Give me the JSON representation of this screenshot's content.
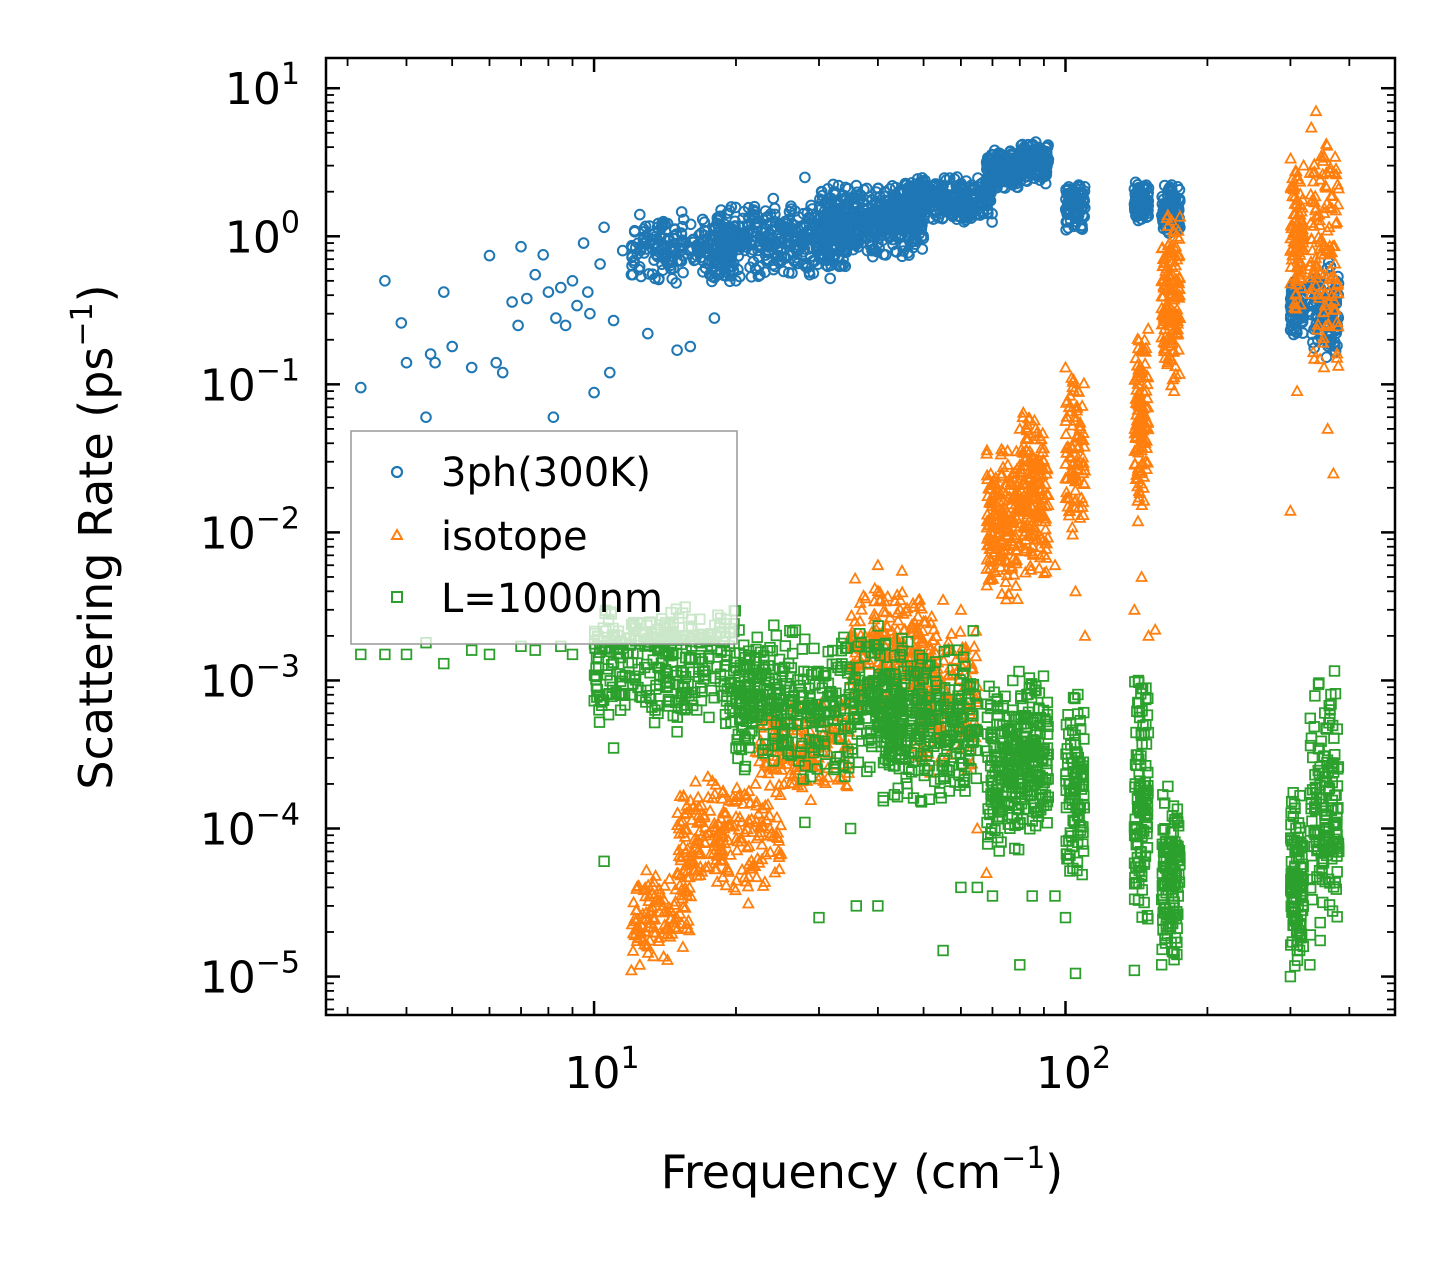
{
  "chart_data": {
    "type": "scatter",
    "xscale": "log",
    "yscale": "log",
    "xlim": [
      2.7,
      500
    ],
    "ylim": [
      5.5e-06,
      16
    ],
    "xlabel": "Frequency (cm⁻¹)",
    "ylabel": "Scattering Rate (ps⁻¹)",
    "xlabel_parts": {
      "base": "Frequency (cm",
      "sup": "−1",
      "tail": ")"
    },
    "ylabel_parts": {
      "base": "Scattering Rate (ps",
      "sup": "−1",
      "tail": ")"
    },
    "x_ticks": [
      {
        "value": 10,
        "base": "10",
        "exp": "1"
      },
      {
        "value": 100,
        "base": "10",
        "exp": "2"
      }
    ],
    "y_ticks": [
      {
        "value": 10,
        "base": "10",
        "exp": "1"
      },
      {
        "value": 1,
        "base": "10",
        "exp": "0"
      },
      {
        "value": 0.1,
        "base": "10",
        "exp": "−1"
      },
      {
        "value": 0.01,
        "base": "10",
        "exp": "−2"
      },
      {
        "value": 0.001,
        "base": "10",
        "exp": "−3"
      },
      {
        "value": 0.0001,
        "base": "10",
        "exp": "−4"
      },
      {
        "value": 1e-05,
        "base": "10",
        "exp": "−5"
      }
    ],
    "legend_position": "center-left",
    "series": [
      {
        "name": "3ph(300K)",
        "marker": "circle",
        "color": "#1f77b4",
        "points": [
          [
            3.2,
            0.095
          ],
          [
            3.6,
            0.5
          ],
          [
            3.9,
            0.26
          ],
          [
            4.0,
            0.14
          ],
          [
            4.4,
            0.06
          ],
          [
            4.5,
            0.16
          ],
          [
            4.8,
            0.42
          ],
          [
            4.6,
            0.14
          ],
          [
            5.0,
            0.18
          ],
          [
            5.5,
            0.13
          ],
          [
            6.0,
            0.74
          ],
          [
            6.2,
            0.14
          ],
          [
            6.4,
            0.12
          ],
          [
            6.7,
            0.36
          ],
          [
            6.9,
            0.25
          ],
          [
            7.0,
            0.85
          ],
          [
            7.2,
            0.38
          ],
          [
            7.5,
            0.55
          ],
          [
            7.8,
            0.75
          ],
          [
            8.0,
            0.42
          ],
          [
            8.2,
            0.06
          ],
          [
            8.3,
            0.28
          ],
          [
            8.5,
            0.45
          ],
          [
            8.7,
            0.25
          ],
          [
            9.0,
            0.5
          ],
          [
            9.2,
            0.34
          ],
          [
            9.5,
            0.9
          ],
          [
            9.7,
            0.42
          ],
          [
            9.8,
            0.3
          ],
          [
            10.0,
            0.088
          ],
          [
            10.3,
            0.65
          ],
          [
            10.5,
            1.15
          ],
          [
            10.8,
            0.12
          ],
          [
            11.0,
            0.27
          ],
          [
            11.5,
            0.8
          ],
          [
            12.0,
            0.55
          ],
          [
            12.5,
            1.4
          ],
          [
            13.0,
            0.22
          ],
          [
            13.5,
            0.9
          ],
          [
            14.0,
            1.2
          ],
          [
            15.0,
            0.17
          ],
          [
            15.5,
            1.3
          ],
          [
            16.0,
            0.18
          ],
          [
            17.0,
            1.3
          ],
          [
            18.0,
            0.28
          ],
          [
            19.0,
            1.1
          ],
          [
            20.0,
            0.5
          ],
          [
            22.0,
            0.6
          ],
          [
            24.0,
            1.8
          ],
          [
            26.0,
            0.9
          ],
          [
            28.0,
            2.5
          ],
          [
            30.0,
            1.5
          ],
          [
            33.0,
            2.2
          ],
          [
            36.0,
            2.2
          ],
          [
            38.0,
            0.8
          ],
          [
            40.0,
            2.1
          ],
          [
            45.0,
            1.6
          ],
          [
            50.0,
            2.3
          ],
          [
            55.0,
            2.2
          ],
          [
            60.0,
            1.6
          ],
          [
            65.0,
            1.7
          ]
        ],
        "clusters": [
          {
            "x": [
              12,
              20
            ],
            "y": [
              0.45,
              1.5
            ],
            "n": 220
          },
          {
            "x": [
              18,
              35
            ],
            "y": [
              0.5,
              1.8
            ],
            "n": 380
          },
          {
            "x": [
              30,
              50
            ],
            "y": [
              0.7,
              2.3
            ],
            "n": 420
          },
          {
            "x": [
              45,
              70
            ],
            "y": [
              1.2,
              2.6
            ],
            "n": 320
          },
          {
            "x": [
              68,
              80
            ],
            "y": [
              2.0,
              4.0
            ],
            "n": 160
          },
          {
            "x": [
              80,
              92
            ],
            "y": [
              2.2,
              4.5
            ],
            "n": 160
          },
          {
            "x": [
              100,
              110
            ],
            "y": [
              1.0,
              2.6
            ],
            "n": 90
          },
          {
            "x": [
              140,
              150
            ],
            "y": [
              1.2,
              2.4
            ],
            "n": 90
          },
          {
            "x": [
              160,
              175
            ],
            "y": [
              1.0,
              2.3
            ],
            "n": 90
          },
          {
            "x": [
              300,
              320
            ],
            "y": [
              0.2,
              0.5
            ],
            "n": 80
          },
          {
            "x": [
              330,
              380
            ],
            "y": [
              0.15,
              0.7
            ],
            "n": 110
          }
        ]
      },
      {
        "name": "isotope",
        "marker": "triangle",
        "color": "#ff7f0e",
        "points": [
          [
            12.0,
            1.1e-05
          ],
          [
            12.5,
            1.2e-05
          ],
          [
            13.0,
            1.6e-05
          ],
          [
            14.0,
            3e-05
          ],
          [
            15.0,
            5e-05
          ],
          [
            16.0,
            6e-05
          ],
          [
            18.0,
            8e-05
          ],
          [
            20.0,
            0.00012
          ],
          [
            22.0,
            0.0002
          ],
          [
            24.0,
            0.00025
          ],
          [
            28.0,
            0.0003
          ],
          [
            30.0,
            0.0004
          ],
          [
            35.0,
            0.0005
          ],
          [
            40.0,
            0.006
          ],
          [
            45.0,
            0.0055
          ],
          [
            50.0,
            0.0025
          ],
          [
            55.0,
            0.0035
          ],
          [
            60.0,
            0.003
          ],
          [
            62.0,
            0.00025
          ],
          [
            65.0,
            0.0001
          ],
          [
            68.0,
            5e-05
          ],
          [
            70.0,
            0.015
          ],
          [
            80.0,
            0.05
          ],
          [
            90.0,
            0.03
          ],
          [
            95.0,
            0.006
          ],
          [
            100.0,
            0.13
          ],
          [
            105.0,
            0.004
          ],
          [
            110.0,
            0.002
          ],
          [
            140.0,
            0.003
          ],
          [
            145.0,
            0.005
          ],
          [
            150.0,
            0.002
          ],
          [
            155.0,
            0.0022
          ],
          [
            160.0,
            0.5
          ],
          [
            165.0,
            0.15
          ],
          [
            170.0,
            0.09
          ],
          [
            300.0,
            0.014
          ],
          [
            310.0,
            0.09
          ],
          [
            320.0,
            3.0
          ],
          [
            340.0,
            7.0
          ],
          [
            360.0,
            0.05
          ],
          [
            370.0,
            0.025
          ]
        ],
        "clusters": [
          {
            "x": [
              12,
              16
            ],
            "y": [
              1.2e-05,
              6e-05
            ],
            "n": 120
          },
          {
            "x": [
              15,
              25
            ],
            "y": [
              3e-05,
              0.00025
            ],
            "n": 220
          },
          {
            "x": [
              22,
              35
            ],
            "y": [
              0.00015,
              0.0008
            ],
            "n": 180
          },
          {
            "x": [
              35,
              50
            ],
            "y": [
              0.0005,
              0.005
            ],
            "n": 220
          },
          {
            "x": [
              48,
              65
            ],
            "y": [
              0.0002,
              0.003
            ],
            "n": 160
          },
          {
            "x": [
              68,
              80
            ],
            "y": [
              0.003,
              0.045
            ],
            "n": 180
          },
          {
            "x": [
              80,
              92
            ],
            "y": [
              0.004,
              0.08
            ],
            "n": 180
          },
          {
            "x": [
              100,
              110
            ],
            "y": [
              0.008,
              0.13
            ],
            "n": 90
          },
          {
            "x": [
              140,
              150
            ],
            "y": [
              0.01,
              0.32
            ],
            "n": 120
          },
          {
            "x": [
              160,
              175
            ],
            "y": [
              0.08,
              1.8
            ],
            "n": 150
          },
          {
            "x": [
              300,
              320
            ],
            "y": [
              0.3,
              4.0
            ],
            "n": 100
          },
          {
            "x": [
              330,
              380
            ],
            "y": [
              0.1,
              7.5
            ],
            "n": 130
          }
        ]
      },
      {
        "name": "L=1000nm",
        "marker": "square",
        "color": "#2ca02c",
        "points": [
          [
            3.2,
            0.0015
          ],
          [
            3.6,
            0.0015
          ],
          [
            4.0,
            0.0015
          ],
          [
            4.4,
            0.0018
          ],
          [
            4.8,
            0.0013
          ],
          [
            5.5,
            0.0016
          ],
          [
            6.0,
            0.0015
          ],
          [
            7.0,
            0.0017
          ],
          [
            7.5,
            0.0016
          ],
          [
            8.5,
            0.0017
          ],
          [
            9.0,
            0.0015
          ],
          [
            10.5,
            6e-05
          ],
          [
            11.0,
            0.00035
          ],
          [
            12.0,
            0.0008
          ],
          [
            15.0,
            0.00045
          ],
          [
            20.0,
            0.00035
          ],
          [
            28.0,
            0.00011
          ],
          [
            30.0,
            2.5e-05
          ],
          [
            35.0,
            0.0001
          ],
          [
            36.0,
            3e-05
          ],
          [
            40.0,
            3e-05
          ],
          [
            50.0,
            0.00045
          ],
          [
            55.0,
            1.5e-05
          ],
          [
            60.0,
            4e-05
          ],
          [
            65.0,
            4e-05
          ],
          [
            70.0,
            3.5e-05
          ],
          [
            80.0,
            1.2e-05
          ],
          [
            85.0,
            3.5e-05
          ],
          [
            95.0,
            3.5e-05
          ],
          [
            100.0,
            2.5e-05
          ],
          [
            105.0,
            1.05e-05
          ],
          [
            140.0,
            1.1e-05
          ],
          [
            160.0,
            1.2e-05
          ],
          [
            170.0,
            1.3e-05
          ],
          [
            300.0,
            1e-05
          ],
          [
            330.0,
            1.2e-05
          ],
          [
            380.0,
            7e-05
          ]
        ],
        "clusters": [
          {
            "x": [
              10,
              20
            ],
            "y": [
              0.0011,
              0.0032
            ],
            "n": 200
          },
          {
            "x": [
              10,
              25
            ],
            "y": [
              0.0005,
              0.0014
            ],
            "n": 180
          },
          {
            "x": [
              20,
              45
            ],
            "y": [
              0.0002,
              0.0025
            ],
            "n": 420
          },
          {
            "x": [
              40,
              65
            ],
            "y": [
              0.00012,
              0.0022
            ],
            "n": 300
          },
          {
            "x": [
              68,
              80
            ],
            "y": [
              6e-05,
              0.0012
            ],
            "n": 160
          },
          {
            "x": [
              80,
              92
            ],
            "y": [
              8e-05,
              0.0013
            ],
            "n": 160
          },
          {
            "x": [
              100,
              110
            ],
            "y": [
              4e-05,
              0.0009
            ],
            "n": 100
          },
          {
            "x": [
              140,
              150
            ],
            "y": [
              1.5e-05,
              0.0015
            ],
            "n": 120
          },
          {
            "x": [
              160,
              175
            ],
            "y": [
              1.2e-05,
              0.0002
            ],
            "n": 130
          },
          {
            "x": [
              300,
              320
            ],
            "y": [
              1e-05,
              0.0002
            ],
            "n": 120
          },
          {
            "x": [
              330,
              380
            ],
            "y": [
              1.5e-05,
              0.0012
            ],
            "n": 160
          }
        ]
      }
    ]
  }
}
